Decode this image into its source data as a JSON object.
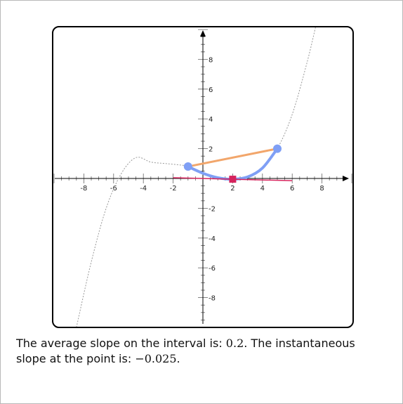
{
  "chart_data": {
    "type": "line",
    "xlim": [
      -10,
      10
    ],
    "ylim": [
      -10,
      10
    ],
    "x_ticks": [
      -8,
      -6,
      -4,
      -2,
      2,
      4,
      6,
      8
    ],
    "y_ticks": [
      8,
      6,
      4,
      2,
      -2,
      -4,
      -6,
      -8
    ],
    "minor_tick_step": 0.5,
    "grid": false,
    "function_curve": {
      "style": "dashed",
      "color": "#999999",
      "points": [
        {
          "x": -8.5,
          "y": -10
        },
        {
          "x": -7.5,
          "y": -5.6
        },
        {
          "x": -6.5,
          "y": -2.0
        },
        {
          "x": -5.5,
          "y": 0.3
        },
        {
          "x": -4.5,
          "y": 1.4
        },
        {
          "x": -3.5,
          "y": 1.1
        },
        {
          "x": -2.5,
          "y": 1.0
        },
        {
          "x": -1.5,
          "y": 0.9
        },
        {
          "x": -1.0,
          "y": 0.8
        },
        {
          "x": 0.0,
          "y": 0.35
        },
        {
          "x": 1.0,
          "y": 0.05
        },
        {
          "x": 2.0,
          "y": -0.05
        },
        {
          "x": 3.0,
          "y": 0.1
        },
        {
          "x": 4.0,
          "y": 0.7
        },
        {
          "x": 5.0,
          "y": 2.0
        },
        {
          "x": 6.0,
          "y": 4.3
        },
        {
          "x": 7.0,
          "y": 7.8
        },
        {
          "x": 7.6,
          "y": 10.3
        }
      ]
    },
    "highlighted_interval": {
      "color": "#7f9ff5",
      "x_start": -1.0,
      "x_end": 5.0,
      "start_point": {
        "x": -1.0,
        "y": 0.8
      },
      "end_point": {
        "x": 5.0,
        "y": 2.0
      }
    },
    "secant_line": {
      "color": "#f2a66b",
      "from": {
        "x": -1.0,
        "y": 0.8
      },
      "to": {
        "x": 5.0,
        "y": 2.0
      }
    },
    "tangent_point": {
      "color": "#d6245d",
      "x": 2.0,
      "y": -0.05,
      "tangent_from": {
        "x": -2.0,
        "y": 0.05
      },
      "tangent_to": {
        "x": 6.0,
        "y": -0.15
      }
    }
  },
  "caption": {
    "avg_prefix": "The average slope on the interval is: ",
    "avg_value": "0.2",
    "mid": ". The instantaneous slope at the point is: ",
    "inst_value": "−0.025",
    "end": "."
  }
}
